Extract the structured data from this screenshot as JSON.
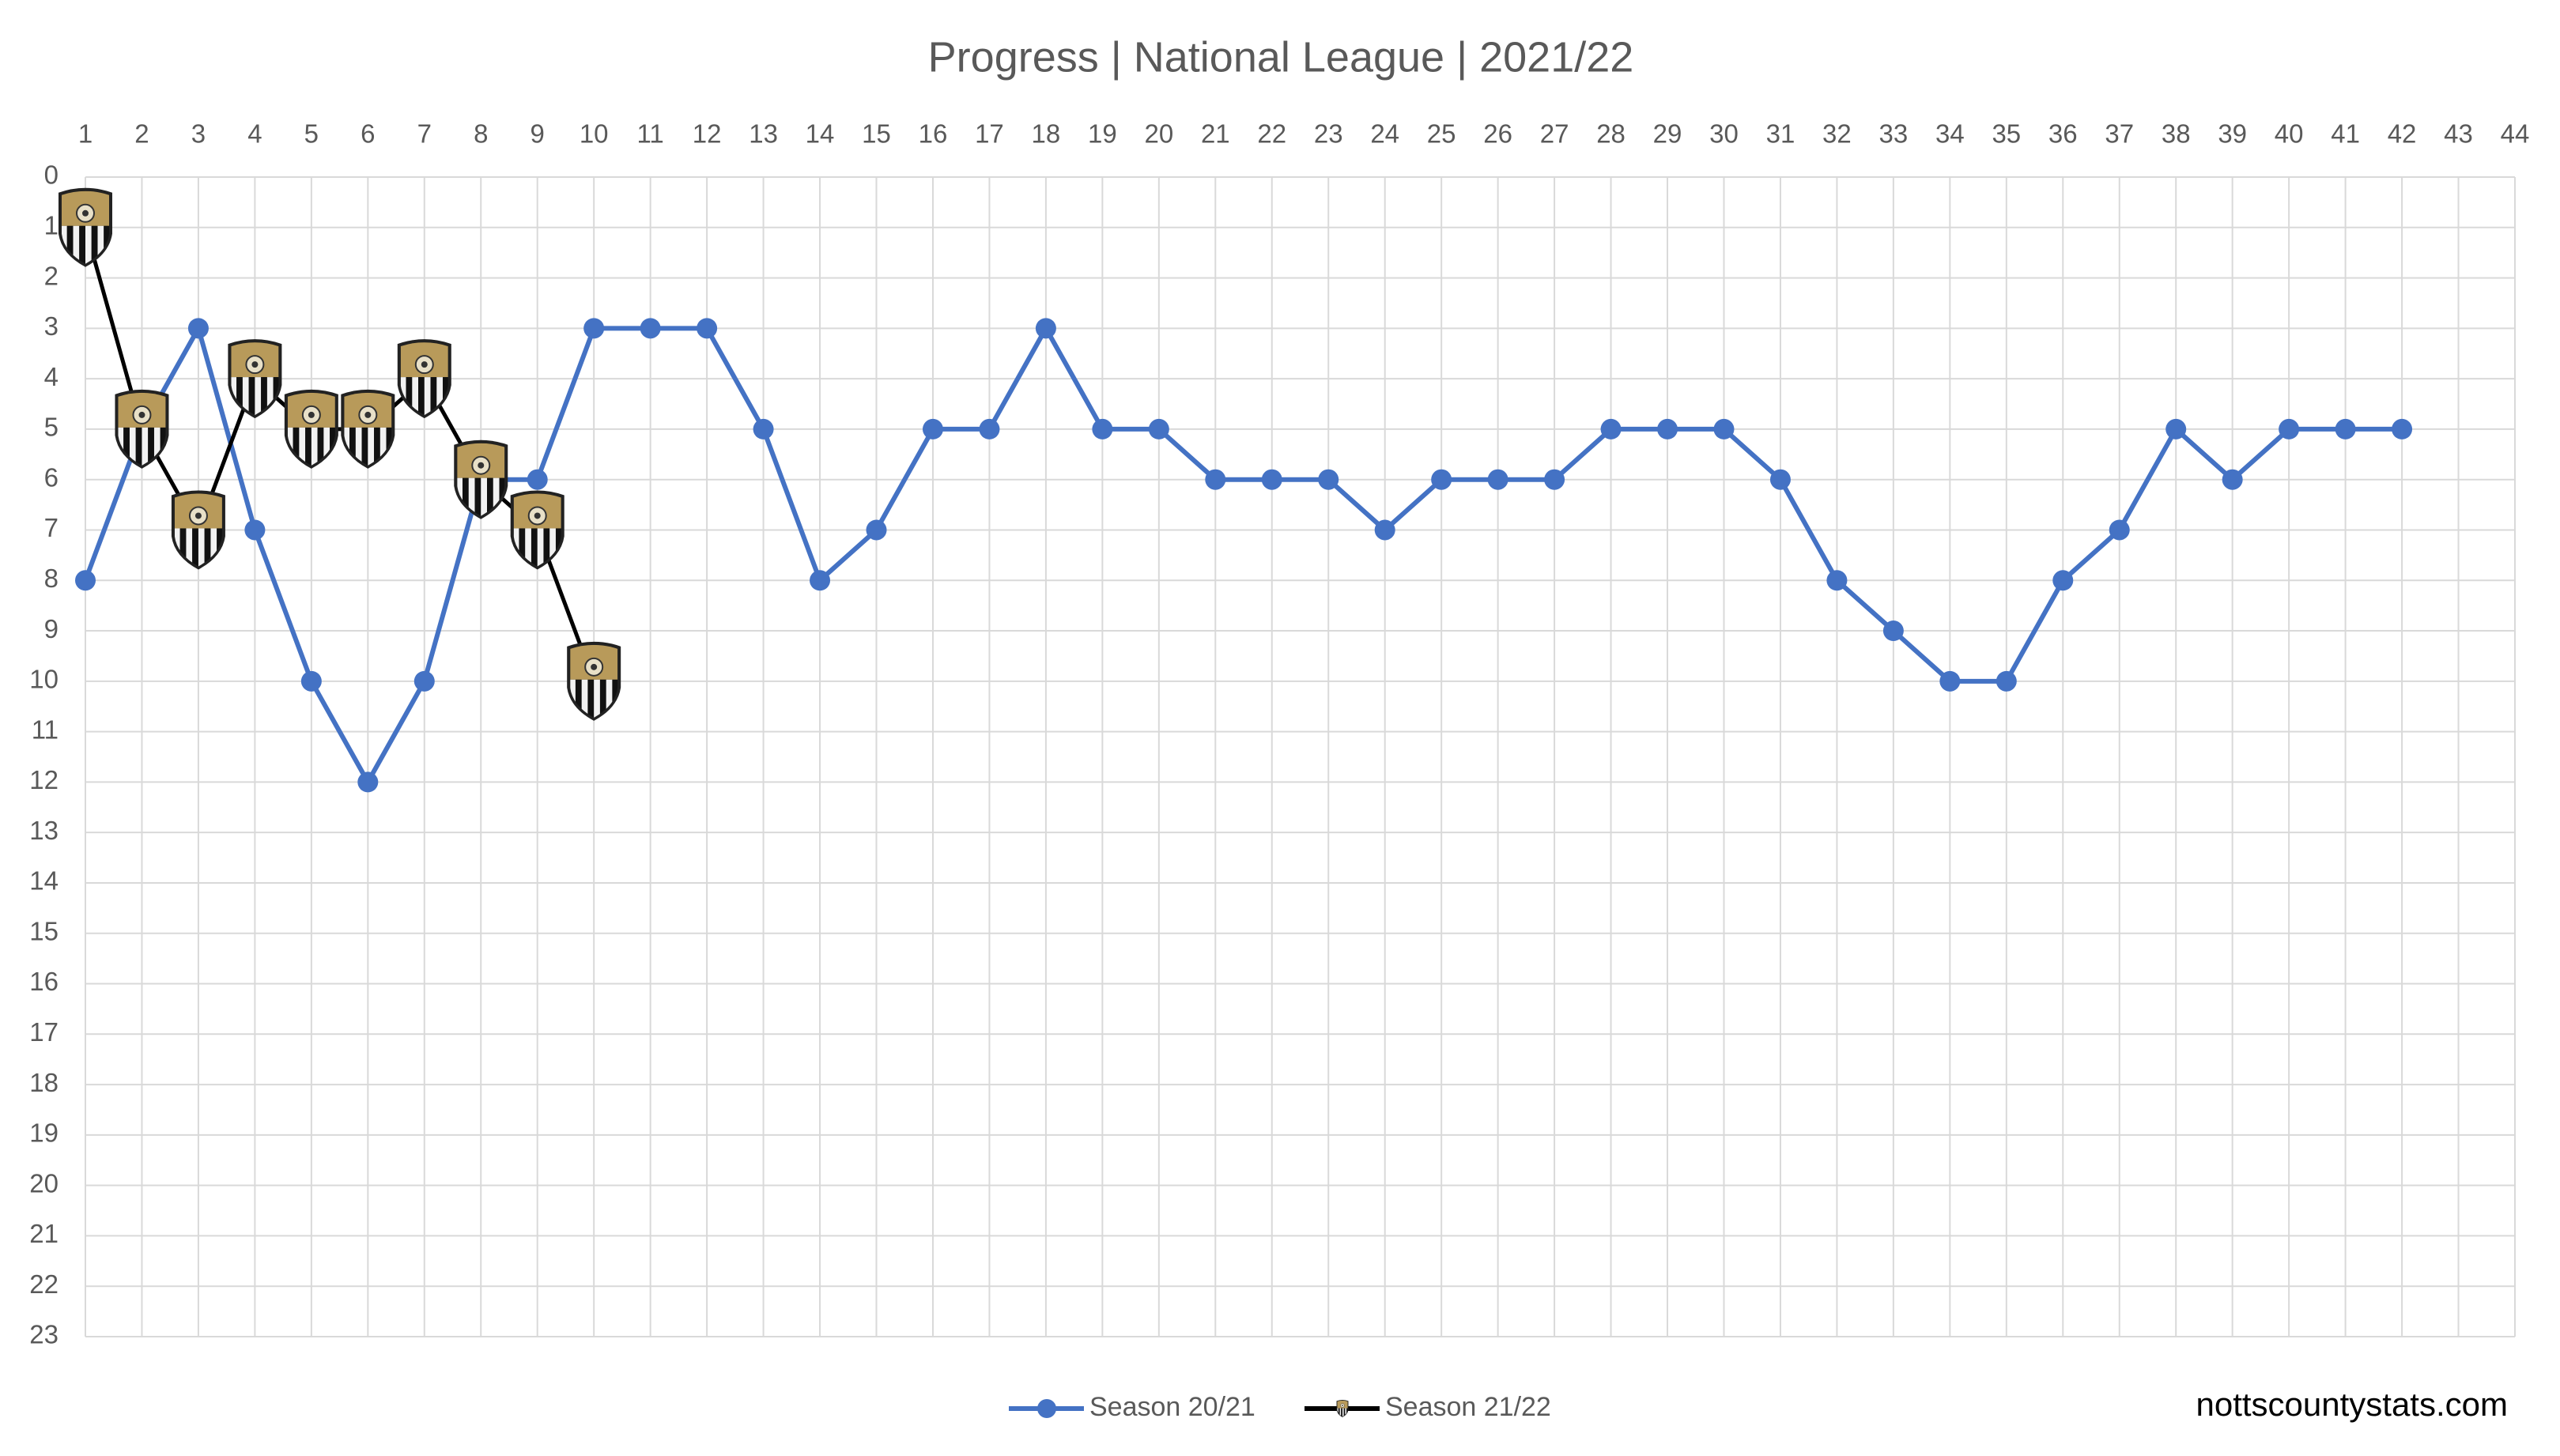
{
  "chart_data": {
    "type": "line",
    "title": "Progress | National League | 2021/22",
    "categories": [
      1,
      2,
      3,
      4,
      5,
      6,
      7,
      8,
      9,
      10,
      11,
      12,
      13,
      14,
      15,
      16,
      17,
      18,
      19,
      20,
      21,
      22,
      23,
      24,
      25,
      26,
      27,
      28,
      29,
      30,
      31,
      32,
      33,
      34,
      35,
      36,
      37,
      38,
      39,
      40,
      41,
      42,
      43,
      44
    ],
    "series": [
      {
        "name": "Season 20/21",
        "color": "#4472c4",
        "marker": "circle",
        "values": [
          8,
          5,
          3,
          7,
          10,
          12,
          10,
          6,
          6,
          3,
          3,
          3,
          5,
          8,
          7,
          5,
          5,
          3,
          5,
          5,
          6,
          6,
          6,
          7,
          6,
          6,
          6,
          5,
          5,
          5,
          6,
          8,
          9,
          10,
          10,
          8,
          7,
          5,
          6,
          5,
          5,
          5,
          null,
          null
        ]
      },
      {
        "name": "Season 21/22",
        "color": "#000000",
        "marker": "crest",
        "values": [
          1,
          5,
          7,
          4,
          5,
          5,
          4,
          6,
          7,
          10,
          null,
          null,
          null,
          null,
          null,
          null,
          null,
          null,
          null,
          null,
          null,
          null,
          null,
          null,
          null,
          null,
          null,
          null,
          null,
          null,
          null,
          null,
          null,
          null,
          null,
          null,
          null,
          null,
          null,
          null,
          null,
          null,
          null,
          null
        ]
      }
    ],
    "ylim": [
      0,
      23
    ],
    "y_inverted": true,
    "yticks": [
      0,
      1,
      2,
      3,
      4,
      5,
      6,
      7,
      8,
      9,
      10,
      11,
      12,
      13,
      14,
      15,
      16,
      17,
      18,
      19,
      20,
      21,
      22,
      23
    ],
    "x_axis_position": "top",
    "grid": true,
    "legend": "bottom",
    "source": "nottscountystats.com"
  }
}
